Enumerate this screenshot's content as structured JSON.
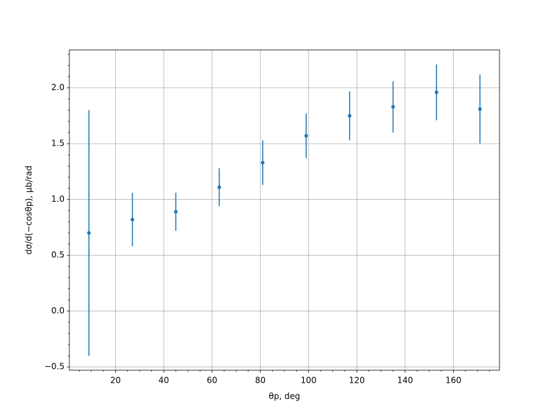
{
  "chart_data": {
    "type": "errorbar",
    "xlabel": "θp, deg",
    "ylabel": "dσ/d(−cosθp), μb/rad",
    "x": [
      9,
      27,
      45,
      63,
      81,
      99,
      117,
      135,
      153,
      171
    ],
    "series": [
      {
        "color": "#1f77b4",
        "values": [
          0.7,
          0.82,
          0.89,
          1.11,
          1.33,
          1.57,
          1.75,
          1.83,
          1.96,
          1.81
        ],
        "errors": [
          1.1,
          0.24,
          0.17,
          0.17,
          0.2,
          0.2,
          0.22,
          0.23,
          0.25,
          0.31
        ]
      }
    ],
    "xlim": [
      0.9,
      179.1
    ],
    "ylim": [
      -0.53,
      2.34
    ],
    "xticks": [
      20,
      40,
      60,
      80,
      100,
      120,
      140,
      160
    ],
    "yticks": [
      {
        "value": -0.5,
        "label": "−0.5"
      },
      {
        "value": 0,
        "label": "0.0"
      },
      {
        "value": 0.5,
        "label": "0.5"
      },
      {
        "value": 1,
        "label": "1.0"
      },
      {
        "value": 1.5,
        "label": "1.5"
      },
      {
        "value": 2,
        "label": "2.0"
      }
    ],
    "xminorticks": [
      5,
      10,
      15,
      25,
      30,
      35,
      45,
      50,
      55,
      65,
      70,
      75,
      85,
      90,
      95,
      105,
      110,
      115,
      125,
      130,
      135,
      145,
      150,
      155,
      165,
      170,
      175
    ],
    "yminorticks": [
      -0.4,
      -0.3,
      -0.2,
      -0.1,
      0.1,
      0.2,
      0.3,
      0.4,
      0.6,
      0.7,
      0.8,
      0.9,
      1.1,
      1.2,
      1.3,
      1.4,
      1.6,
      1.7,
      1.8,
      1.9,
      2.1,
      2.2,
      2.3
    ],
    "grid": true
  }
}
